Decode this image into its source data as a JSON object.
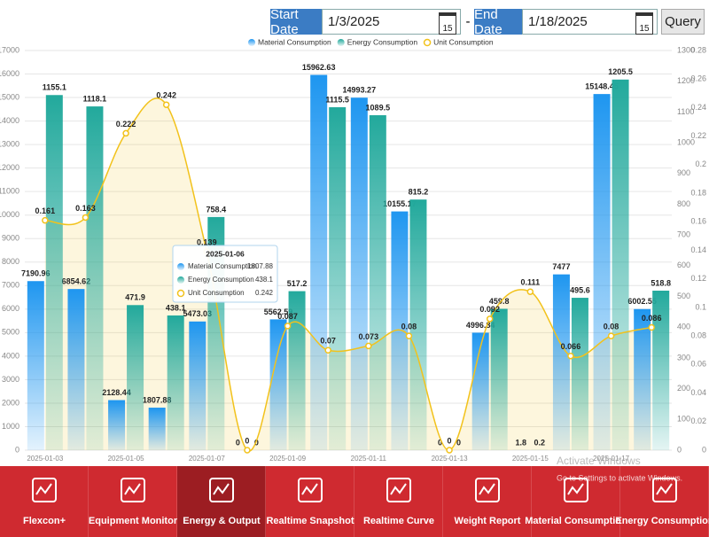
{
  "toolbar": {
    "start_label": "Start Date",
    "start_value": "1/3/2025",
    "calendar_day": "15",
    "separator": "-",
    "end_label": "End Date",
    "end_value": "1/18/2025",
    "query": "Query"
  },
  "chart_data": {
    "type": "bar-line",
    "categories": [
      "2025-01-03",
      null,
      "2025-01-05",
      null,
      "2025-01-07",
      null,
      "2025-01-09",
      null,
      "2025-01-11",
      null,
      "2025-01-13",
      null,
      "2025-01-15",
      null,
      "2025-01-17",
      null
    ],
    "series": [
      {
        "name": "Material Consumption",
        "color": "#1e96f0",
        "type": "bar",
        "axis": "y",
        "values": [
          7190.96,
          6854.62,
          2128.44,
          1807.88,
          5473.03,
          0,
          5562.59,
          15962.63,
          14993.27,
          10155.17,
          0,
          4996.84,
          1.8,
          7477,
          15148.45,
          6002.55
        ]
      },
      {
        "name": "Energy Consumption",
        "color": "#22a99c",
        "type": "bar",
        "axis": "y2",
        "values": [
          1155.1,
          1118.1,
          471.9,
          438.1,
          758.4,
          0,
          517.2,
          1115.5,
          1089.5,
          815.2,
          0,
          459.8,
          0.2,
          495.6,
          1205.5,
          518.8
        ]
      },
      {
        "name": "Unit Consumption",
        "color": "#f2c21b",
        "type": "line",
        "axis": "y3",
        "values": [
          0.161,
          0.163,
          0.222,
          0.242,
          0.139,
          0,
          0.087,
          0.07,
          0.073,
          0.08,
          0,
          0.092,
          0.111,
          0.066,
          0.08,
          0.086
        ]
      }
    ],
    "ylim": [
      0,
      17000
    ],
    "yticks": [
      0,
      1000,
      2000,
      3000,
      4000,
      5000,
      6000,
      7000,
      8000,
      9000,
      10000,
      11000,
      12000,
      13000,
      14000,
      15000,
      16000,
      17000
    ],
    "y2lim": [
      0,
      1300
    ],
    "y2ticks": [
      0,
      100,
      200,
      300,
      400,
      500,
      600,
      700,
      800,
      900,
      1000,
      1100,
      1200,
      1300
    ],
    "y3lim": [
      0,
      0.28
    ],
    "y3ticks": [
      0,
      0.02,
      0.04,
      0.06,
      0.08,
      0.1,
      0.12,
      0.14,
      0.16,
      0.18,
      0.2,
      0.22,
      0.24,
      0.26,
      0.28
    ],
    "grid": true,
    "legend": "top",
    "tooltip": {
      "title": "2025-01-06",
      "index": 3
    }
  },
  "nav": {
    "items": [
      "Flexcon+",
      "Equipment Monitor",
      "Energy & Output",
      "Realtime Snapshot",
      "Realtime Curve",
      "Weight Report",
      "Material Consumption",
      "Energy Consumption"
    ],
    "active": 2
  },
  "watermark": {
    "title": "Activate Windows",
    "text": "Go to Settings to activate Windows."
  }
}
